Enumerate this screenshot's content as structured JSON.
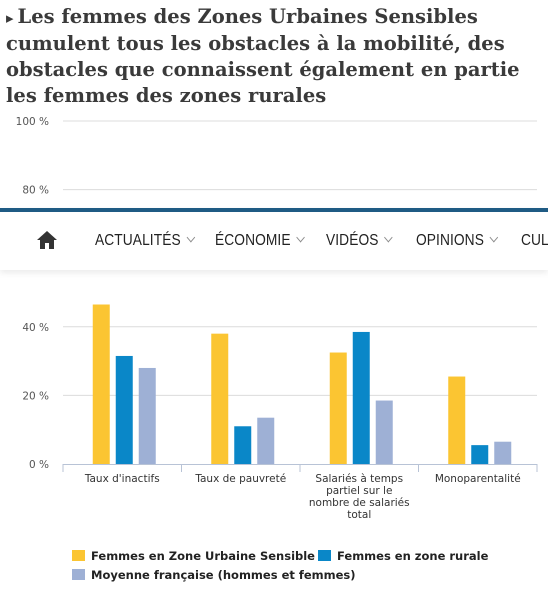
{
  "page": {
    "title_arrow": "▸",
    "title": "Les femmes des Zones Urbaines Sensibles cumulent tous les obstacles à la mobilité, des obstacles que connaissent également en partie les femmes des zones rurales"
  },
  "nav": {
    "home_icon": "home-icon",
    "items": [
      {
        "label": "ACTUALITÉS"
      },
      {
        "label": "ÉCONOMIE"
      },
      {
        "label": "VIDÉOS"
      },
      {
        "label": "OPINIONS"
      },
      {
        "label": "CULT"
      }
    ]
  },
  "chart_data": {
    "type": "bar",
    "categories": [
      [
        "Taux d'inactifs"
      ],
      [
        "Taux de pauvreté"
      ],
      [
        "Salariés à temps",
        "partiel sur le",
        "nombre de salariés",
        "total"
      ],
      [
        "Monoparentalité"
      ]
    ],
    "series": [
      {
        "name": "Femmes en Zone Urbaine Sensible",
        "color": "#fbc532",
        "values": [
          46.5,
          38,
          32.5,
          25.5
        ]
      },
      {
        "name": "Femmes en zone rurale",
        "color": "#0a87c8",
        "values": [
          31.5,
          11,
          38.5,
          5.5
        ]
      },
      {
        "name": "Moyenne française (hommes et femmes)",
        "color": "#9eb0d5",
        "values": [
          28,
          13.5,
          18.5,
          6.5
        ]
      }
    ],
    "ylim": [
      0,
      100
    ],
    "yticks": [
      {
        "value": 0,
        "label": "0 %"
      },
      {
        "value": 20,
        "label": "20 %"
      },
      {
        "value": 40,
        "label": "40 %"
      },
      {
        "value": 80,
        "label": "80 %"
      },
      {
        "value": 100,
        "label": "100 %"
      }
    ],
    "grid": true,
    "legend_position": "bottom"
  }
}
